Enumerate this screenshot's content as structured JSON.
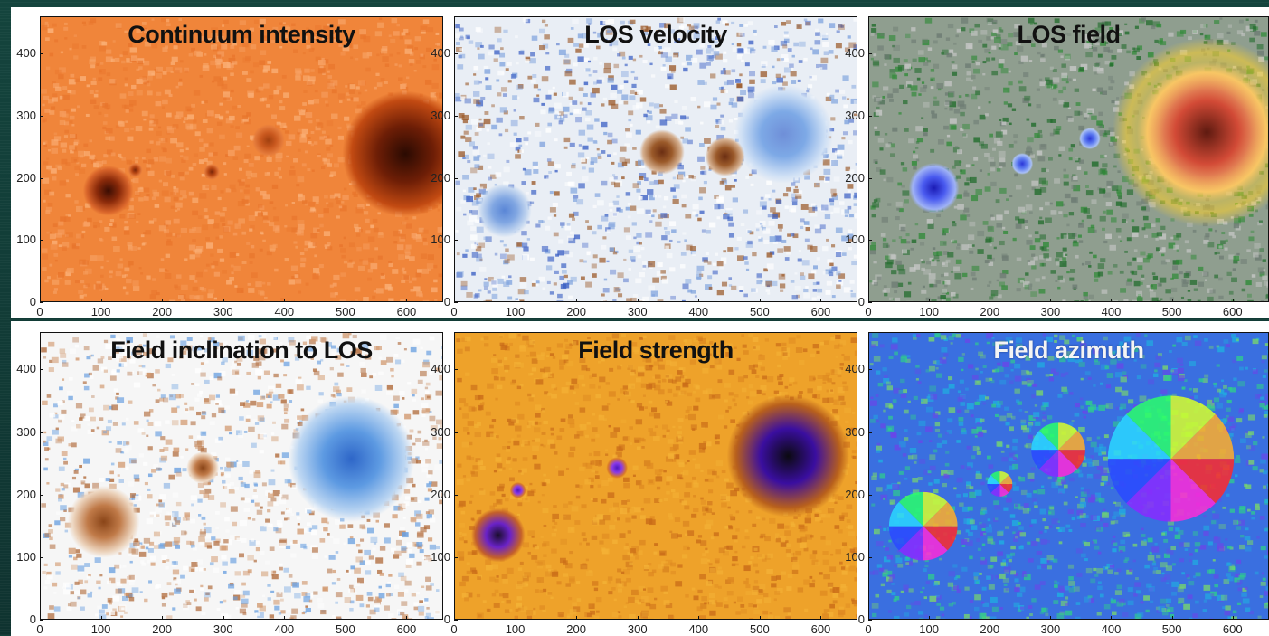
{
  "panels": [
    {
      "title": "Continuum intensity",
      "palette": "orange",
      "light_title": false
    },
    {
      "title": "LOS velocity",
      "palette": "bluebrown",
      "light_title": false
    },
    {
      "title": "LOS field",
      "palette": "field",
      "light_title": false
    },
    {
      "title": "Field inclination to LOS",
      "palette": "incl",
      "light_title": false
    },
    {
      "title": "Field strength",
      "palette": "strength",
      "light_title": false
    },
    {
      "title": "Field azimuth",
      "palette": "azimuth",
      "light_title": true
    }
  ],
  "x_ticks": [
    "0",
    "100",
    "200",
    "300",
    "400",
    "500",
    "600"
  ],
  "y_ticks": [
    "0",
    "100",
    "200",
    "300",
    "400"
  ],
  "x_range": [
    0,
    660
  ],
  "y_range": [
    0,
    460
  ]
}
